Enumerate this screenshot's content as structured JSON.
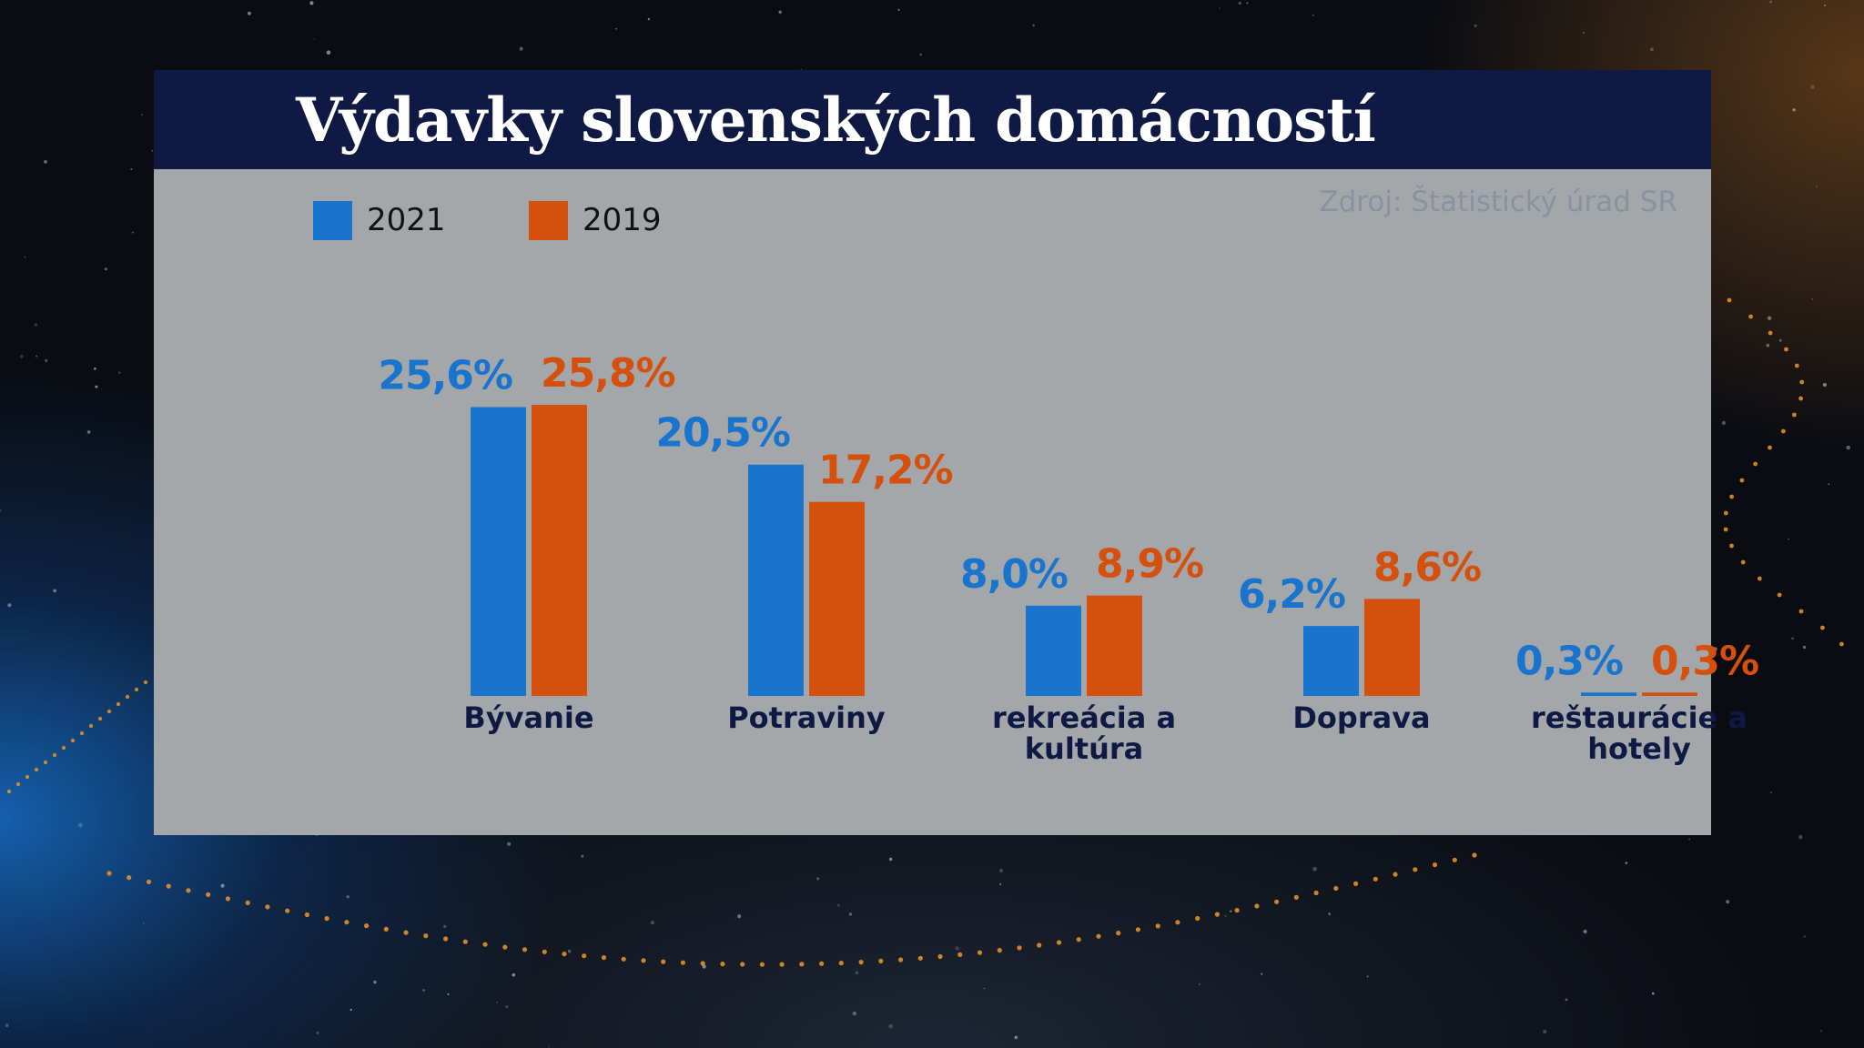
{
  "colors": {
    "series_2021": "#1874cd",
    "series_2019": "#d5500c",
    "title_bg": "#0e1a44",
    "panel_bg": "#a4a7aa"
  },
  "title": "Výdavky slovenských domácností",
  "source": "Zdroj: Štatistický úrad SR",
  "legend": [
    {
      "label": "2021"
    },
    {
      "label": "2019"
    }
  ],
  "chart_data": {
    "type": "bar",
    "categories": [
      [
        "Bývanie"
      ],
      [
        "Potraviny"
      ],
      [
        "rekreácia a",
        "kultúra"
      ],
      [
        "Doprava"
      ],
      [
        "reštaurácie a",
        "hotely"
      ]
    ],
    "series": [
      {
        "name": "2021",
        "values": [
          25.6,
          20.5,
          8.0,
          6.2,
          0.3
        ],
        "labels": [
          "25,6%",
          "20,5%",
          "8,0%",
          "6,2%",
          "0,3%"
        ]
      },
      {
        "name": "2019",
        "values": [
          25.8,
          17.2,
          8.9,
          8.6,
          0.3
        ],
        "labels": [
          "25,8%",
          "17,2%",
          "8,9%",
          "8,6%",
          "0,3%"
        ]
      }
    ],
    "ylim": [
      0,
      25.8
    ],
    "grid": false,
    "legend_position": "top-left"
  }
}
